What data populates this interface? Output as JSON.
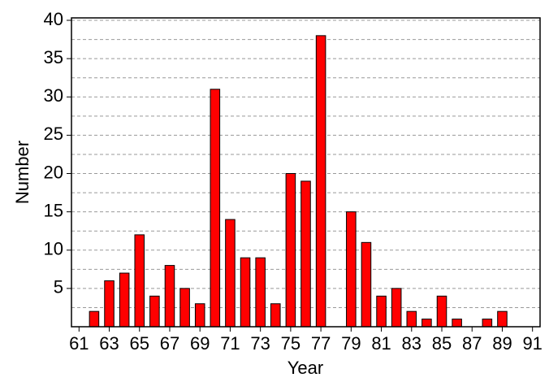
{
  "chart_data": {
    "type": "bar",
    "xlabel": "Year",
    "ylabel": "Number",
    "x": [
      62,
      63,
      64,
      65,
      66,
      67,
      68,
      69,
      70,
      71,
      72,
      73,
      74,
      75,
      76,
      77,
      79,
      80,
      81,
      82,
      83,
      84,
      85,
      86,
      88,
      89
    ],
    "values": [
      2,
      6,
      7,
      12,
      4,
      8,
      5,
      3,
      31,
      14,
      9,
      9,
      3,
      20,
      19,
      38,
      15,
      11,
      4,
      5,
      2,
      1,
      4,
      1,
      1,
      2
    ],
    "color": "#ff0000",
    "xlim": [
      60.5,
      91.5
    ],
    "xticks": [
      61,
      63,
      65,
      67,
      69,
      71,
      73,
      75,
      77,
      79,
      81,
      83,
      85,
      87,
      89,
      91
    ],
    "ylim": [
      0,
      40
    ],
    "yticks": [
      5,
      10,
      15,
      20,
      25,
      30,
      35,
      40
    ],
    "yminorticks": [
      2.5,
      7.5,
      12.5,
      17.5,
      22.5,
      27.5,
      32.5,
      37.5
    ],
    "grid": true
  }
}
